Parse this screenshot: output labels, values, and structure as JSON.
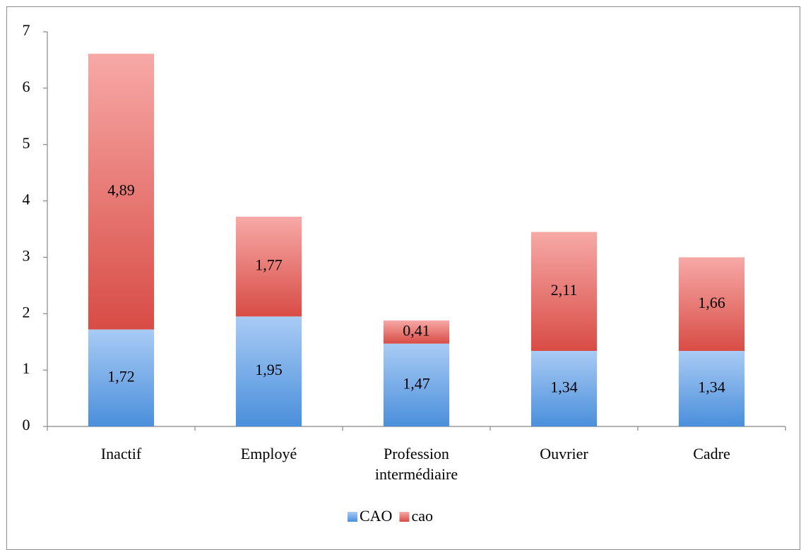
{
  "chart_data": {
    "type": "stacked_bar",
    "categories": [
      "Inactif",
      "Employé",
      "Profession intermédiaire",
      "Ouvrier",
      "Cadre"
    ],
    "series": [
      {
        "name": "CAO",
        "color": "#5b9bd5",
        "values": [
          1.72,
          1.95,
          1.47,
          1.34,
          1.34
        ],
        "value_labels": [
          "1,72",
          "1,95",
          "1,47",
          "1,34",
          "1,34"
        ]
      },
      {
        "name": "cao",
        "color": "#e0605a",
        "values": [
          4.89,
          1.77,
          0.41,
          2.11,
          1.66
        ],
        "value_labels": [
          "4,89",
          "1,77",
          "0,41",
          "2,11",
          "1,66"
        ]
      }
    ],
    "ylim": [
      0,
      7
    ],
    "yticks": [
      0,
      1,
      2,
      3,
      4,
      5,
      6,
      7
    ],
    "grid": false,
    "legend": "bottom"
  }
}
